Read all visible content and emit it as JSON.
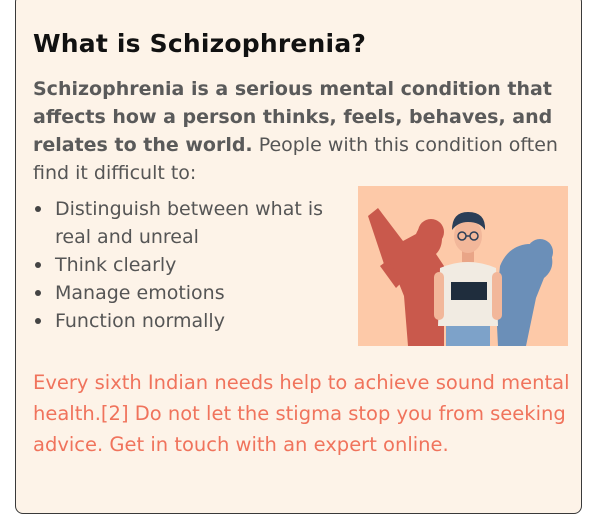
{
  "heading": "What is Schizophrenia?",
  "intro": {
    "bold": "Schizophrenia is a serious mental condition that affects how a person thinks, feels, behaves, and relates to the world.",
    "normal": " People with this condition often find it difficult to:"
  },
  "difficulties": [
    "Distinguish between what is real and unreal",
    "Think clearly",
    "Manage emotions",
    "Function normally"
  ],
  "cta": "Every sixth Indian needs help to achieve sound mental health.[2] Do not let the stigma stop you from seeking advice. Get in touch with an expert online.",
  "colors": {
    "card_background": "#fdf3e8",
    "accent_text": "#f0735c",
    "illustration_background": "#fdc9a8"
  },
  "icons": {
    "illustration": "person-with-shadow-selves-illustration"
  }
}
